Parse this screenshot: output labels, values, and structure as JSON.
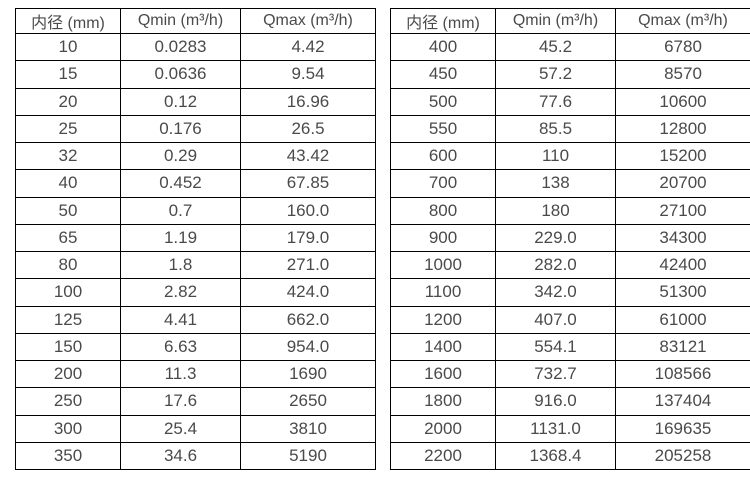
{
  "colors": {
    "background": "#ffffff",
    "text": "#4a4a4a",
    "border": "#000000"
  },
  "tables": [
    {
      "name": "flow-rate-table-dn10-350",
      "headers": [
        "内径 (mm)",
        "Qmin (m³/h)",
        "Qmax (m³/h)"
      ],
      "rows": [
        [
          "10",
          "0.0283",
          "4.42"
        ],
        [
          "15",
          "0.0636",
          "9.54"
        ],
        [
          "20",
          "0.12",
          "16.96"
        ],
        [
          "25",
          "0.176",
          "26.5"
        ],
        [
          "32",
          "0.29",
          "43.42"
        ],
        [
          "40",
          "0.452",
          "67.85"
        ],
        [
          "50",
          "0.7",
          "160.0"
        ],
        [
          "65",
          "1.19",
          "179.0"
        ],
        [
          "80",
          "1.8",
          "271.0"
        ],
        [
          "100",
          "2.82",
          "424.0"
        ],
        [
          "125",
          "4.41",
          "662.0"
        ],
        [
          "150",
          "6.63",
          "954.0"
        ],
        [
          "200",
          "11.3",
          "1690"
        ],
        [
          "250",
          "17.6",
          "2650"
        ],
        [
          "300",
          "25.4",
          "3810"
        ],
        [
          "350",
          "34.6",
          "5190"
        ]
      ]
    },
    {
      "name": "flow-rate-table-dn400-2200",
      "headers": [
        "内径 (mm)",
        "Qmin (m³/h)",
        "Qmax (m³/h)"
      ],
      "rows": [
        [
          "400",
          "45.2",
          "6780"
        ],
        [
          "450",
          "57.2",
          "8570"
        ],
        [
          "500",
          "77.6",
          "10600"
        ],
        [
          "550",
          "85.5",
          "12800"
        ],
        [
          "600",
          "110",
          "15200"
        ],
        [
          "700",
          "138",
          "20700"
        ],
        [
          "800",
          "180",
          "27100"
        ],
        [
          "900",
          "229.0",
          "34300"
        ],
        [
          "1000",
          "282.0",
          "42400"
        ],
        [
          "1100",
          "342.0",
          "51300"
        ],
        [
          "1200",
          "407.0",
          "61000"
        ],
        [
          "1400",
          "554.1",
          "83121"
        ],
        [
          "1600",
          "732.7",
          "108566"
        ],
        [
          "1800",
          "916.0",
          "137404"
        ],
        [
          "2000",
          "1131.0",
          "169635"
        ],
        [
          "2200",
          "1368.4",
          "205258"
        ]
      ]
    }
  ]
}
